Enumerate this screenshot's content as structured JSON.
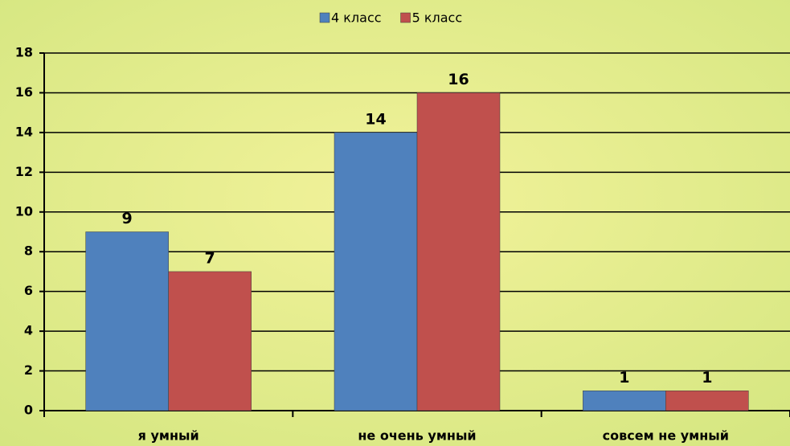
{
  "chart_data": {
    "type": "bar",
    "categories": [
      "я умный",
      "не очень умный",
      "совсем не умный"
    ],
    "series": [
      {
        "name": "4 класс",
        "color": "#4f81bd",
        "values": [
          9,
          14,
          1
        ]
      },
      {
        "name": "5 класс",
        "color": "#c0504d",
        "values": [
          7,
          16,
          1
        ]
      }
    ],
    "ylim": [
      0,
      18
    ],
    "yticks": [
      0,
      2,
      4,
      6,
      8,
      10,
      12,
      14,
      16,
      18
    ],
    "grid": true,
    "legend": "top"
  }
}
